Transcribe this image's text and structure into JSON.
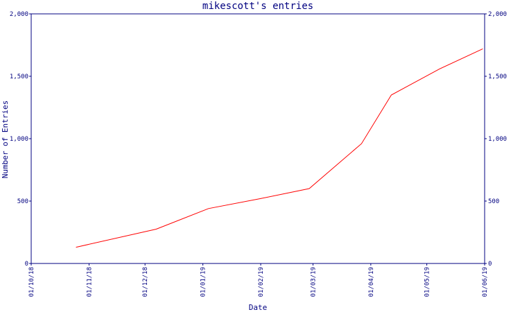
{
  "chart_data": {
    "type": "line",
    "title": "mikescott's entries",
    "xlabel": "Date",
    "ylabel": "Number of Entries",
    "x_tick_labels": [
      "01/10/18",
      "01/11/18",
      "01/12/18",
      "01/01/19",
      "01/02/19",
      "01/03/19",
      "01/04/19",
      "01/05/19",
      "01/06/19"
    ],
    "x_ticks": [
      "2018-10-01",
      "2018-11-01",
      "2018-12-01",
      "2019-01-01",
      "2019-02-01",
      "2019-03-01",
      "2019-04-01",
      "2019-05-01",
      "2019-06-01"
    ],
    "xlim": [
      "2018-10-01",
      "2019-06-01"
    ],
    "y_ticks": [
      0,
      500,
      1000,
      1500,
      2000
    ],
    "y_tick_labels": [
      "0",
      "500",
      "1,000",
      "1,500",
      "2,000"
    ],
    "ylim": [
      0,
      2000
    ],
    "grid": false,
    "colors": {
      "line": "#ff0000",
      "axis": "#000080",
      "text": "#000080"
    },
    "series": [
      {
        "x": [
          "2018-10-25",
          "2018-12-07",
          "2019-01-04",
          "2019-02-01",
          "2019-02-27",
          "2019-03-27",
          "2019-04-12",
          "2019-05-08",
          "2019-05-31"
        ],
        "y": [
          130,
          275,
          440,
          520,
          600,
          960,
          1350,
          1560,
          1720
        ]
      }
    ]
  }
}
